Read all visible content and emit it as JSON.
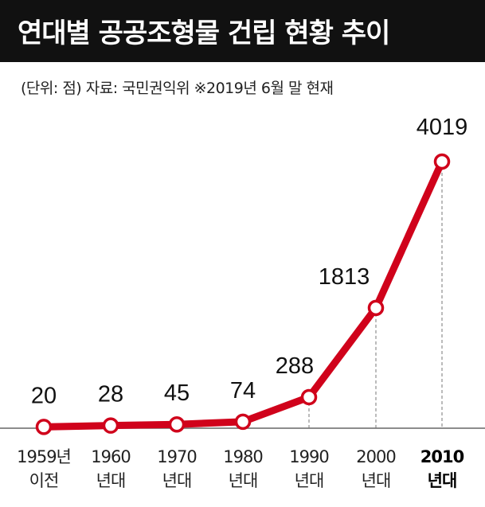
{
  "header": {
    "title": "연대별 공공조형물 건립 현황 추이",
    "subtitle": "(단위: 점) 자료: 국민권익위 ※2019년 6월 말 현재"
  },
  "colors": {
    "line": "#d0021b",
    "title_bg": "#111111",
    "fill": "#ffffff"
  },
  "chart_data": {
    "type": "line",
    "title": "연대별 공공조형물 건립 현황 추이",
    "unit": "점",
    "categories": [
      [
        "1959년",
        "이전"
      ],
      [
        "1960",
        "년대"
      ],
      [
        "1970",
        "년대"
      ],
      [
        "1980",
        "년대"
      ],
      [
        "1990",
        "년대"
      ],
      [
        "2000",
        "년대"
      ],
      [
        "2010",
        "년대"
      ]
    ],
    "values": [
      20,
      28,
      45,
      74,
      288,
      1813,
      4019
    ],
    "value_labels": [
      "20",
      "28",
      "45",
      "74",
      "288",
      "1813",
      "4019"
    ],
    "highlight_category_index": 6,
    "ylim": [
      0,
      4019
    ],
    "grid": false,
    "xlabel": "",
    "ylabel": ""
  }
}
